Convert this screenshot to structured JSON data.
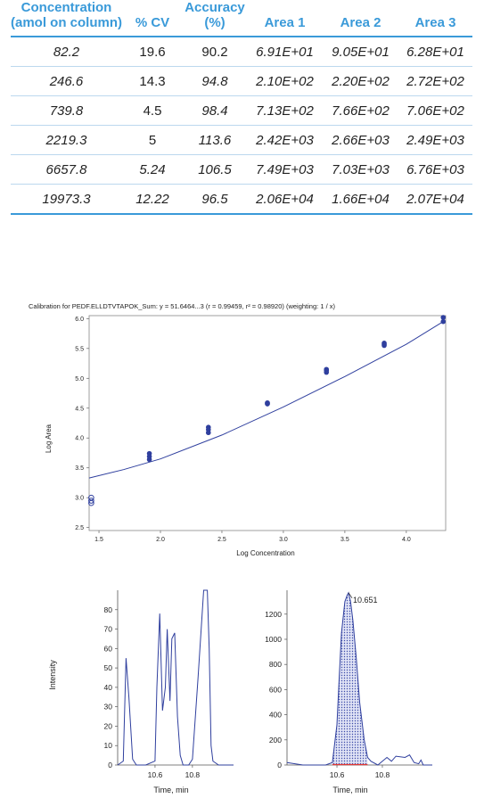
{
  "table": {
    "headers": [
      "Concentration (amol on column)",
      "% CV",
      "Accuracy (%)",
      "Area 1",
      "Area 2",
      "Area 3"
    ],
    "rows": [
      [
        "82.2",
        "19.6",
        "90.2",
        "6.91E+01",
        "9.05E+01",
        "6.28E+01"
      ],
      [
        "246.6",
        "14.3",
        "94.8",
        "2.10E+02",
        "2.20E+02",
        "2.72E+02"
      ],
      [
        "739.8",
        "4.5",
        "98.4",
        "7.13E+02",
        "7.66E+02",
        "7.06E+02"
      ],
      [
        "2219.3",
        "5",
        "113.6",
        "2.42E+03",
        "2.66E+03",
        "2.49E+03"
      ],
      [
        "6657.8",
        "5.24",
        "106.5",
        "7.49E+03",
        "7.03E+03",
        "6.76E+03"
      ],
      [
        "19973.3",
        "12.22",
        "96.5",
        "2.06E+04",
        "1.66E+04",
        "2.07E+04"
      ]
    ],
    "header_color": "#3a9ad9"
  },
  "chart_data": [
    {
      "type": "scatter",
      "title": "Calibration for PEDF.ELLDTVTAPOK_Sum: y = 51.6464...3 (r = 0.99459, r² = 0.98920) (weighting: 1 / x)",
      "xlabel": "Log Concentration",
      "ylabel": "Log Area",
      "xlim": [
        1.42,
        4.32
      ],
      "ylim": [
        2.45,
        6.05
      ],
      "xticks": [
        "1.5",
        "2.0",
        "2.5",
        "3.0",
        "3.5",
        "4.0"
      ],
      "xtick_values": [
        1.5,
        2.0,
        2.5,
        3.0,
        3.5,
        4.0
      ],
      "yticks": [
        "2.5",
        "3.0",
        "3.5",
        "4.0",
        "4.5",
        "5.0",
        "5.5",
        "6.0"
      ],
      "ytick_values": [
        2.5,
        3.0,
        3.5,
        4.0,
        4.5,
        5.0,
        5.5,
        6.0
      ],
      "points": [
        {
          "x": 1.91,
          "y": 3.74
        },
        {
          "x": 1.91,
          "y": 3.69
        },
        {
          "x": 1.91,
          "y": 3.64
        },
        {
          "x": 2.39,
          "y": 4.18
        },
        {
          "x": 2.39,
          "y": 4.14
        },
        {
          "x": 2.39,
          "y": 4.09
        },
        {
          "x": 2.87,
          "y": 4.59
        },
        {
          "x": 2.87,
          "y": 4.58
        },
        {
          "x": 2.87,
          "y": 4.57
        },
        {
          "x": 3.35,
          "y": 5.15
        },
        {
          "x": 3.35,
          "y": 5.13
        },
        {
          "x": 3.35,
          "y": 5.1
        },
        {
          "x": 3.82,
          "y": 5.59
        },
        {
          "x": 3.82,
          "y": 5.57
        },
        {
          "x": 3.82,
          "y": 5.55
        },
        {
          "x": 4.3,
          "y": 6.02
        },
        {
          "x": 4.3,
          "y": 5.95
        }
      ],
      "excluded_points": [
        {
          "x": 1.43,
          "y": 3.0
        },
        {
          "x": 1.43,
          "y": 2.95
        },
        {
          "x": 1.43,
          "y": 2.91
        }
      ],
      "fit_curve": [
        {
          "x": 1.42,
          "y": 3.33
        },
        {
          "x": 1.7,
          "y": 3.47
        },
        {
          "x": 2.0,
          "y": 3.65
        },
        {
          "x": 2.5,
          "y": 4.05
        },
        {
          "x": 3.0,
          "y": 4.52
        },
        {
          "x": 3.5,
          "y": 5.03
        },
        {
          "x": 4.0,
          "y": 5.57
        },
        {
          "x": 4.3,
          "y": 5.95
        }
      ],
      "color": "#2f3f9e"
    },
    {
      "type": "line",
      "xlabel": "Time, min",
      "ylabel": "Intensity",
      "xlim": [
        10.4,
        11.02
      ],
      "ylim": [
        0,
        90
      ],
      "xticks": [
        "10.6",
        "10.8"
      ],
      "xtick_values": [
        10.6,
        10.8
      ],
      "yticks": [
        "0",
        "10",
        "20",
        "30",
        "40",
        "50",
        "60",
        "70",
        "80"
      ],
      "ytick_values": [
        0,
        10,
        20,
        30,
        40,
        50,
        60,
        70,
        80
      ],
      "x": [
        10.4,
        10.43,
        10.445,
        10.46,
        10.48,
        10.5,
        10.55,
        10.6,
        10.61,
        10.625,
        10.64,
        10.655,
        10.665,
        10.68,
        10.69,
        10.705,
        10.72,
        10.735,
        10.75,
        10.76,
        10.78,
        10.8,
        10.83,
        10.86,
        10.868,
        10.88,
        10.89,
        10.9,
        10.91,
        10.94,
        11.02
      ],
      "y": [
        0,
        2,
        55,
        35,
        3,
        0,
        0,
        2,
        40,
        78,
        28,
        40,
        70,
        33,
        65,
        68,
        25,
        5,
        0,
        0,
        0,
        3,
        45,
        90,
        90,
        90,
        60,
        10,
        2,
        0,
        0
      ],
      "color": "#2f3f9e"
    },
    {
      "type": "area",
      "xlabel": "Time, min",
      "yticks": [
        "0",
        "200",
        "400",
        "600",
        "800",
        "1000",
        "1200"
      ],
      "ytick_values": [
        0,
        200,
        400,
        600,
        800,
        1000,
        1200
      ],
      "xticks": [
        "10.6",
        "10.8"
      ],
      "xtick_values": [
        10.6,
        10.8
      ],
      "xlim": [
        10.38,
        11.02
      ],
      "ylim": [
        0,
        1390
      ],
      "peak_label": "10.651",
      "peak": {
        "x": 10.651,
        "y": 1370
      },
      "x": [
        10.38,
        10.45,
        10.5,
        10.55,
        10.58,
        10.6,
        10.61,
        10.62,
        10.635,
        10.645,
        10.651,
        10.66,
        10.67,
        10.685,
        10.7,
        10.72,
        10.735,
        10.75,
        10.78,
        10.8,
        10.82,
        10.84,
        10.86,
        10.9,
        10.92,
        10.94,
        10.96,
        10.97,
        10.98,
        11.02
      ],
      "y": [
        20,
        0,
        0,
        0,
        20,
        320,
        700,
        1050,
        1300,
        1350,
        1370,
        1300,
        1150,
        850,
        500,
        200,
        60,
        30,
        0,
        30,
        60,
        30,
        70,
        60,
        80,
        20,
        10,
        40,
        0,
        0
      ],
      "color": "#2f3f9e",
      "fill": "#b9bfe6",
      "baseline_color": "#e53935"
    }
  ]
}
